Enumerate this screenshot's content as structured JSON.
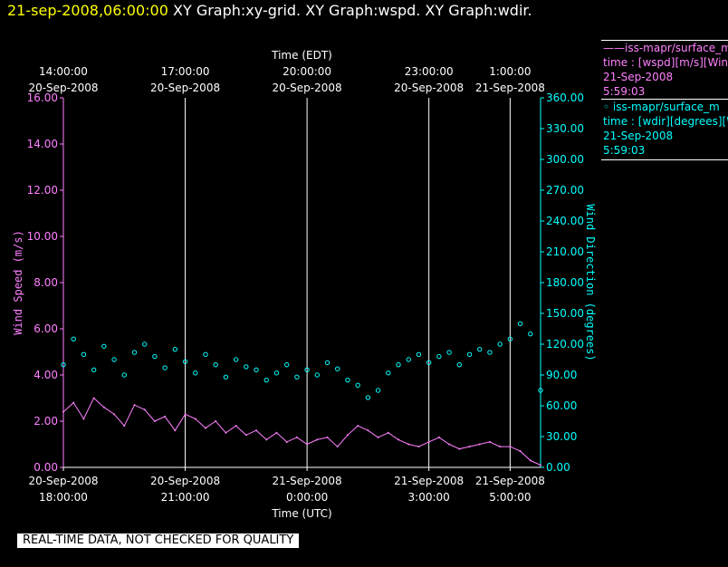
{
  "header": {
    "timestamp": "21-sep-2008,06:00:00",
    "graphs": "XY Graph:xy-grid.  XY Graph:wspd.  XY Graph:wdir."
  },
  "legend": {
    "wspd": {
      "line1": "——iss-mapr/surface_m",
      "line2": "time : [wspd][m/s][Wind",
      "line3": "21-Sep-2008",
      "line4": "5:59:03"
    },
    "wdir": {
      "line1": "◦ iss-mapr/surface_m",
      "line2": "time : [wdir][degrees][W",
      "line3": "21-Sep-2008",
      "line4": "5:59:03"
    }
  },
  "footer": "REAL-TIME DATA, NOT CHECKED FOR QUALITY",
  "colors": {
    "background": "#000000",
    "wind_speed": "#ff80ff",
    "wind_direction": "#00ffff",
    "grid": "#ffffff",
    "timestamp": "#ffff00"
  },
  "chart_data": {
    "type": "line",
    "x_axis_bottom": {
      "label": "Time (UTC)",
      "range_hours": [
        0,
        11.75
      ],
      "ticks": [
        {
          "hour": 0,
          "date": "20-Sep-2008",
          "time": "18:00:00"
        },
        {
          "hour": 3,
          "date": "20-Sep-2008",
          "time": "21:00:00"
        },
        {
          "hour": 6,
          "date": "21-Sep-2008",
          "time": "0:00:00"
        },
        {
          "hour": 9,
          "date": "21-Sep-2008",
          "time": "3:00:00"
        },
        {
          "hour": 11,
          "date": "21-Sep-2008",
          "time": "5:00:00"
        }
      ]
    },
    "x_axis_top": {
      "label": "Time (EDT)",
      "ticks": [
        {
          "hour": 0,
          "time": "14:00:00",
          "date": "20-Sep-2008"
        },
        {
          "hour": 3,
          "time": "17:00:00",
          "date": "20-Sep-2008"
        },
        {
          "hour": 6,
          "time": "20:00:00",
          "date": "20-Sep-2008"
        },
        {
          "hour": 9,
          "time": "23:00:00",
          "date": "20-Sep-2008"
        },
        {
          "hour": 11,
          "time": "1:00:00",
          "date": "21-Sep-2008"
        }
      ]
    },
    "y_left": {
      "label": "Wind Speed (m/s)",
      "range": [
        0,
        16
      ],
      "ticks": [
        "0.00",
        "2.00",
        "4.00",
        "6.00",
        "8.00",
        "10.00",
        "12.00",
        "14.00",
        "16.00"
      ]
    },
    "y_right": {
      "label": "Wind Direction (degrees)",
      "range": [
        0,
        360
      ],
      "ticks": [
        "0.00",
        "30.00",
        "60.00",
        "90.00",
        "120.00",
        "150.00",
        "180.00",
        "210.00",
        "240.00",
        "270.00",
        "300.00",
        "330.00",
        "360.00"
      ]
    },
    "grid_vertical_hours": [
      3,
      6,
      9,
      11
    ],
    "series": [
      {
        "key": "wspd",
        "style": "line",
        "axis": "left",
        "x_hours": [
          0,
          0.25,
          0.5,
          0.75,
          1,
          1.25,
          1.5,
          1.75,
          2,
          2.25,
          2.5,
          2.75,
          3,
          3.25,
          3.5,
          3.75,
          4,
          4.25,
          4.5,
          4.75,
          5,
          5.25,
          5.5,
          5.75,
          6,
          6.25,
          6.5,
          6.75,
          7,
          7.25,
          7.5,
          7.75,
          8,
          8.25,
          8.5,
          8.75,
          9,
          9.25,
          9.5,
          9.75,
          10,
          10.25,
          10.5,
          10.75,
          11,
          11.25,
          11.5,
          11.75
        ],
        "values": [
          2.4,
          2.8,
          2.1,
          3.0,
          2.6,
          2.3,
          1.8,
          2.7,
          2.5,
          2.0,
          2.2,
          1.6,
          2.3,
          2.1,
          1.7,
          2.0,
          1.5,
          1.8,
          1.4,
          1.6,
          1.2,
          1.5,
          1.1,
          1.3,
          1.0,
          1.2,
          1.3,
          0.9,
          1.4,
          1.8,
          1.6,
          1.3,
          1.5,
          1.2,
          1.0,
          0.9,
          1.1,
          1.3,
          1.0,
          0.8,
          0.9,
          1.0,
          1.1,
          0.9,
          0.9,
          0.7,
          0.3,
          0.1
        ]
      },
      {
        "key": "wdir",
        "style": "scatter",
        "axis": "right",
        "x_hours": [
          0,
          0.25,
          0.5,
          0.75,
          1,
          1.25,
          1.5,
          1.75,
          2,
          2.25,
          2.5,
          2.75,
          3,
          3.25,
          3.5,
          3.75,
          4,
          4.25,
          4.5,
          4.75,
          5,
          5.25,
          5.5,
          5.75,
          6,
          6.25,
          6.5,
          6.75,
          7,
          7.25,
          7.5,
          7.75,
          8,
          8.25,
          8.5,
          8.75,
          9,
          9.25,
          9.5,
          9.75,
          10,
          10.25,
          10.5,
          10.75,
          11,
          11.25,
          11.5,
          11.75
        ],
        "values": [
          100,
          125,
          110,
          95,
          118,
          105,
          90,
          112,
          120,
          108,
          97,
          115,
          103,
          92,
          110,
          100,
          88,
          105,
          98,
          95,
          85,
          92,
          100,
          88,
          95,
          90,
          102,
          96,
          85,
          80,
          68,
          75,
          92,
          100,
          105,
          110,
          102,
          108,
          112,
          100,
          110,
          115,
          112,
          120,
          125,
          140,
          130,
          75
        ]
      }
    ]
  }
}
